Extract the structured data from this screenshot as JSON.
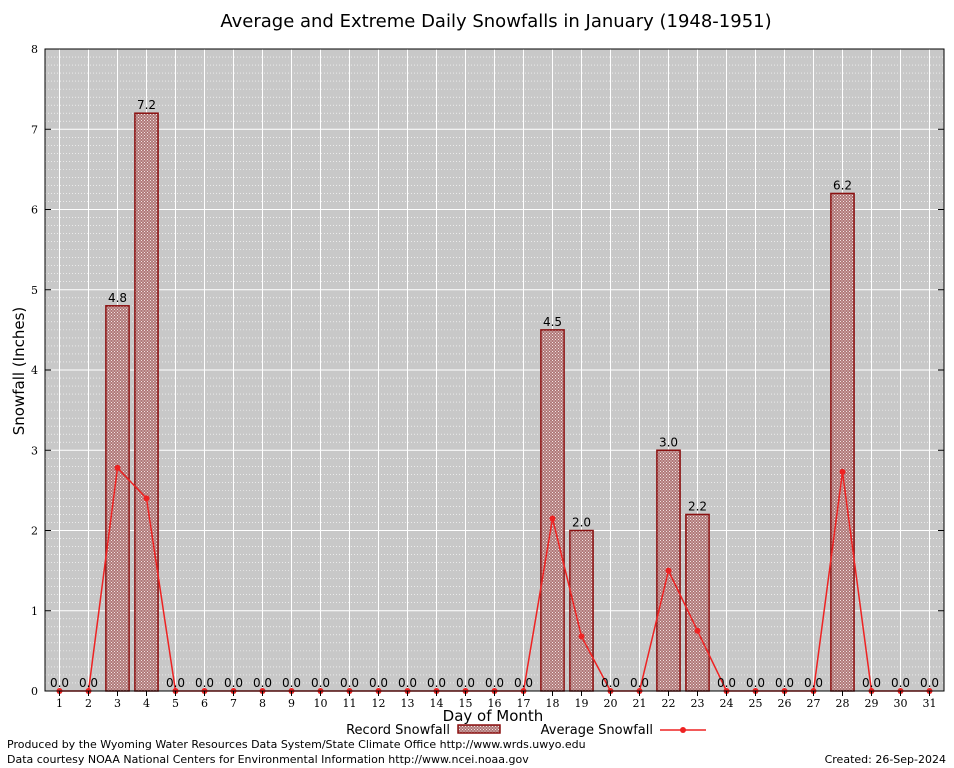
{
  "colors": {
    "plot_bg": "#c8c8c8",
    "bar_fill": "#c9a4a4",
    "bar_edge": "#8b1010",
    "line": "#ee2222",
    "grid": "#ffffff"
  },
  "chart_data": {
    "type": "bar",
    "title": "Average and Extreme Daily Snowfalls in January (1948-1951)",
    "xlabel": "Day of Month",
    "ylabel": "Snowfall (Inches)",
    "ylim": [
      0,
      8
    ],
    "yticks": [
      "0",
      "1",
      "2",
      "3",
      "4",
      "5",
      "6",
      "7",
      "8"
    ],
    "categories": [
      "1",
      "2",
      "3",
      "4",
      "5",
      "6",
      "7",
      "8",
      "9",
      "10",
      "11",
      "12",
      "13",
      "14",
      "15",
      "16",
      "17",
      "18",
      "19",
      "20",
      "21",
      "22",
      "23",
      "24",
      "25",
      "26",
      "27",
      "28",
      "29",
      "30",
      "31"
    ],
    "series": [
      {
        "name": "Record Snowfall",
        "kind": "bar",
        "values": [
          0,
          0,
          4.8,
          7.2,
          0,
          0,
          0,
          0,
          0,
          0,
          0,
          0,
          0,
          0,
          0,
          0,
          0,
          4.5,
          2.0,
          0,
          0,
          3.0,
          2.2,
          0,
          0,
          0,
          0,
          6.2,
          0,
          0,
          0
        ],
        "labels": [
          "0.0",
          "0.0",
          "4.8",
          "7.2",
          "0.0",
          "0.0",
          "0.0",
          "0.0",
          "0.0",
          "0.0",
          "0.0",
          "0.0",
          "0.0",
          "0.0",
          "0.0",
          "0.0",
          "0.0",
          "4.5",
          "2.0",
          "0.0",
          "0.0",
          "3.0",
          "2.2",
          "0.0",
          "0.0",
          "0.0",
          "0.0",
          "6.2",
          "0.0",
          "0.0",
          "0.0"
        ]
      },
      {
        "name": "Average Snowfall",
        "kind": "line",
        "values": [
          0,
          0,
          2.78,
          2.4,
          0,
          0,
          0,
          0,
          0,
          0,
          0,
          0,
          0,
          0,
          0,
          0,
          0,
          2.15,
          0.68,
          0,
          0,
          1.5,
          0.75,
          0,
          0,
          0,
          0,
          2.73,
          0,
          0,
          0
        ]
      }
    ],
    "legend": [
      "Record Snowfall",
      "Average Snowfall"
    ]
  },
  "footer": {
    "produced_by": "Produced by the Wyoming Water Resources Data System/State Climate Office http://www.wrds.uwyo.edu",
    "data_courtesy": "Data courtesy NOAA National Centers for Environmental Information http://www.ncei.noaa.gov",
    "created": "Created: 26-Sep-2024"
  }
}
